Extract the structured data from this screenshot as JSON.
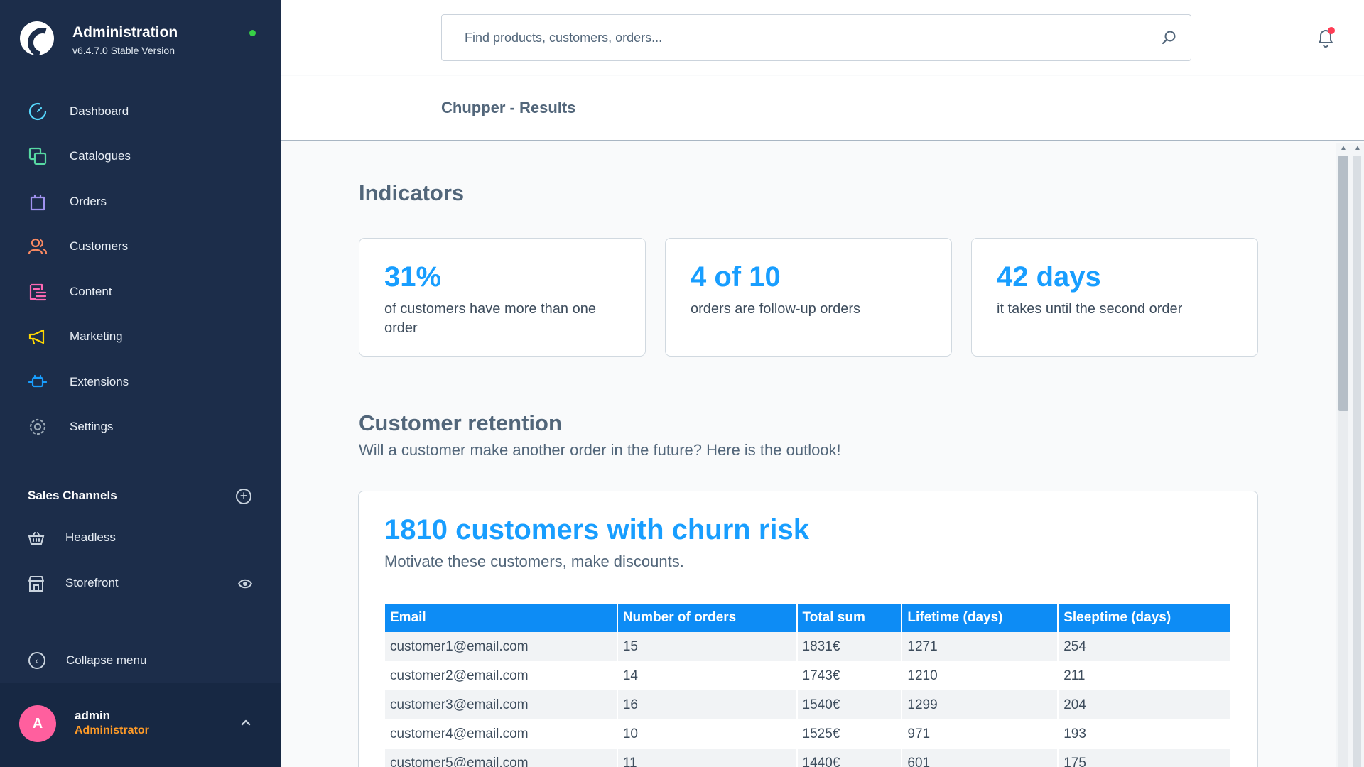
{
  "app": {
    "title": "Administration",
    "version": "v6.4.7.0 Stable Version"
  },
  "nav": {
    "items": [
      {
        "label": "Dashboard",
        "icon": "dashboard-icon",
        "color": "#57d9ff"
      },
      {
        "label": "Catalogues",
        "icon": "catalogues-icon",
        "color": "#57d9a3"
      },
      {
        "label": "Orders",
        "icon": "orders-icon",
        "color": "#a092f0"
      },
      {
        "label": "Customers",
        "icon": "customers-icon",
        "color": "#f88962"
      },
      {
        "label": "Content",
        "icon": "content-icon",
        "color": "#ff68b4"
      },
      {
        "label": "Marketing",
        "icon": "marketing-icon",
        "color": "#ffd700"
      },
      {
        "label": "Extensions",
        "icon": "extensions-icon",
        "color": "#189eff"
      },
      {
        "label": "Settings",
        "icon": "settings-icon",
        "color": "#9aa8b5"
      }
    ]
  },
  "sales_channels": {
    "header": "Sales Channels",
    "items": [
      {
        "label": "Headless",
        "icon": "basket-icon"
      },
      {
        "label": "Storefront",
        "icon": "storefront-icon"
      }
    ]
  },
  "collapse_label": "Collapse menu",
  "user": {
    "initial": "A",
    "name": "admin",
    "role": "Administrator"
  },
  "search": {
    "placeholder": "Find products, customers, orders..."
  },
  "page": {
    "title": "Chupper - Results"
  },
  "indicators": {
    "title": "Indicators",
    "cards": [
      {
        "value": "31%",
        "text": "of customers have more than one order"
      },
      {
        "value": "4 of 10",
        "text": "orders are follow-up orders"
      },
      {
        "value": "42 days",
        "text": "it takes until the second order"
      }
    ]
  },
  "retention": {
    "title": "Customer retention",
    "subtitle": "Will a customer make another order in the future? Here is the outlook!",
    "churn_title": "1810 customers with churn risk",
    "churn_subtitle": "Motivate these customers, make discounts.",
    "table": {
      "headers": [
        "Email",
        "Number of orders",
        "Total sum",
        "Lifetime (days)",
        "Sleeptime (days)"
      ],
      "rows": [
        [
          "customer1@email.com",
          "15",
          "1831€",
          "1271",
          "254"
        ],
        [
          "customer2@email.com",
          "14",
          "1743€",
          "1210",
          "211"
        ],
        [
          "customer3@email.com",
          "16",
          "1540€",
          "1299",
          "204"
        ],
        [
          "customer4@email.com",
          "10",
          "1525€",
          "971",
          "193"
        ],
        [
          "customer5@email.com",
          "11",
          "1440€",
          "601",
          "175"
        ]
      ]
    }
  },
  "colors": {
    "sidebar_bg": "#1c2d4a",
    "accent": "#189eff",
    "table_header": "#0d8cf5",
    "avatar": "#ff5f9e",
    "role": "#ff9b27",
    "status_online": "#37d046",
    "notification": "#ff3d55"
  }
}
